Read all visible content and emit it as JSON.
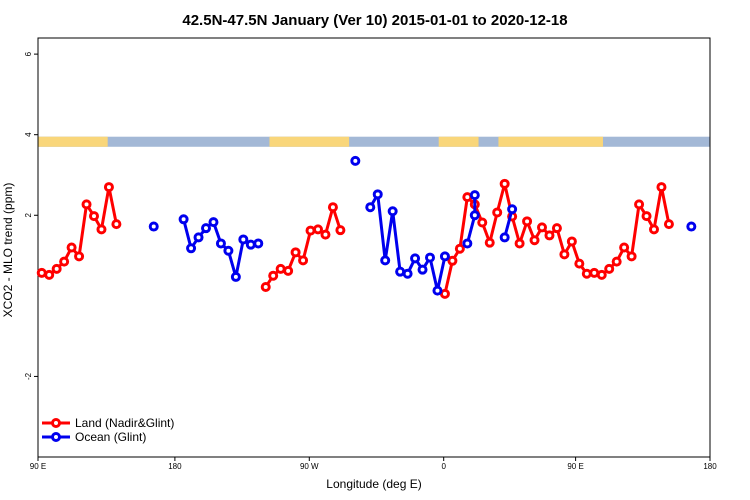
{
  "chart_data": {
    "type": "line",
    "title": "42.5N-47.5N January (Ver 10)   2015-01-01 to 2020-12-18",
    "xlabel": "Longitude (deg E)",
    "ylabel": "XCO2 - MLO trend (ppm)",
    "xlim": [
      -90,
      180
    ],
    "ylim": [
      -4,
      6.4
    ],
    "x_ticks": [
      {
        "value": -90,
        "label": "90 E"
      },
      {
        "value": -35,
        "label": "180"
      },
      {
        "value": 19,
        "label": "90 W"
      },
      {
        "value": 73,
        "label": "0"
      },
      {
        "value": 126,
        "label": "90 E"
      },
      {
        "value": 180,
        "label": "180"
      }
    ],
    "y_ticks": [
      {
        "value": -2,
        "label": "-2"
      },
      {
        "value": 2,
        "label": "2"
      },
      {
        "value": 4,
        "label": "4"
      },
      {
        "value": 6,
        "label": "6"
      }
    ],
    "grid": false,
    "legend_position": "bottom-left",
    "surface_band": {
      "ymin": 3.7,
      "ymax": 3.95,
      "land_color": "#f9d67a",
      "ocean_color": "#a3b8d6",
      "land_ranges": [
        [
          -90,
          -62
        ],
        [
          3,
          35
        ],
        [
          71,
          87
        ],
        [
          95,
          137
        ]
      ]
    },
    "series": [
      {
        "name": "Land (Nadir&Glint)",
        "color": "#ff0000",
        "segments": [
          [
            [
              -88.5,
              0.57
            ],
            [
              -85.5,
              0.52
            ],
            [
              -82.5,
              0.67
            ],
            [
              -79.5,
              0.85
            ],
            [
              -76.5,
              1.2
            ],
            [
              -73.5,
              0.98
            ],
            [
              -70.5,
              2.27
            ],
            [
              -67.5,
              1.98
            ],
            [
              -64.5,
              1.65
            ],
            [
              -61.5,
              2.7
            ],
            [
              -58.5,
              1.78
            ]
          ],
          [
            [
              1.5,
              0.22
            ],
            [
              4.5,
              0.5
            ],
            [
              7.5,
              0.67
            ],
            [
              10.5,
              0.62
            ],
            [
              13.5,
              1.08
            ],
            [
              16.5,
              0.88
            ],
            [
              19.5,
              1.62
            ],
            [
              22.5,
              1.65
            ],
            [
              25.5,
              1.52
            ],
            [
              28.5,
              2.2
            ],
            [
              31.5,
              1.63
            ]
          ],
          [
            [
              73.5,
              0.05
            ],
            [
              76.5,
              0.87
            ],
            [
              79.5,
              1.17
            ],
            [
              82.5,
              2.45
            ],
            [
              85.5,
              2.27
            ],
            [
              88.5,
              1.82
            ],
            [
              91.5,
              1.32
            ],
            [
              94.5,
              2.07
            ],
            [
              97.5,
              2.78
            ],
            [
              100.5,
              1.97
            ],
            [
              103.5,
              1.3
            ],
            [
              106.5,
              1.85
            ],
            [
              109.5,
              1.38
            ],
            [
              112.5,
              1.7
            ],
            [
              115.5,
              1.5
            ],
            [
              118.5,
              1.68
            ],
            [
              121.5,
              1.03
            ],
            [
              124.5,
              1.35
            ],
            [
              127.5,
              0.8
            ],
            [
              130.5,
              0.55
            ],
            [
              133.5,
              0.57
            ],
            [
              136.5,
              0.52
            ],
            [
              139.5,
              0.67
            ],
            [
              142.5,
              0.85
            ],
            [
              145.5,
              1.2
            ],
            [
              148.5,
              0.98
            ],
            [
              151.5,
              2.27
            ],
            [
              154.5,
              1.98
            ],
            [
              157.5,
              1.65
            ],
            [
              160.5,
              2.7
            ],
            [
              163.5,
              1.78
            ]
          ]
        ]
      },
      {
        "name": "Ocean (Glint)",
        "color": "#0000ee",
        "segments": [
          [
            [
              -43.5,
              1.72
            ]
          ],
          [
            [
              -31.5,
              1.9
            ],
            [
              -28.5,
              1.18
            ],
            [
              -25.5,
              1.45
            ],
            [
              -22.5,
              1.68
            ],
            [
              -19.5,
              1.83
            ],
            [
              -16.5,
              1.3
            ],
            [
              -13.5,
              1.12
            ],
            [
              -10.5,
              0.47
            ],
            [
              -7.5,
              1.4
            ],
            [
              -4.5,
              1.27
            ],
            [
              -1.5,
              1.3
            ]
          ],
          [
            [
              37.5,
              3.35
            ]
          ],
          [
            [
              43.5,
              2.2
            ],
            [
              46.5,
              2.52
            ],
            [
              49.5,
              0.88
            ],
            [
              52.5,
              2.1
            ],
            [
              55.5,
              0.6
            ],
            [
              58.5,
              0.55
            ],
            [
              61.5,
              0.93
            ],
            [
              64.5,
              0.65
            ],
            [
              67.5,
              0.95
            ],
            [
              70.5,
              0.13
            ],
            [
              73.5,
              0.98
            ]
          ],
          [
            [
              82.5,
              1.3
            ],
            [
              85.5,
              2.0
            ],
            [
              85.5,
              2.5
            ]
          ],
          [
            [
              97.5,
              1.45
            ],
            [
              100.5,
              2.15
            ]
          ],
          [
            [
              172.5,
              1.72
            ]
          ]
        ]
      }
    ]
  }
}
